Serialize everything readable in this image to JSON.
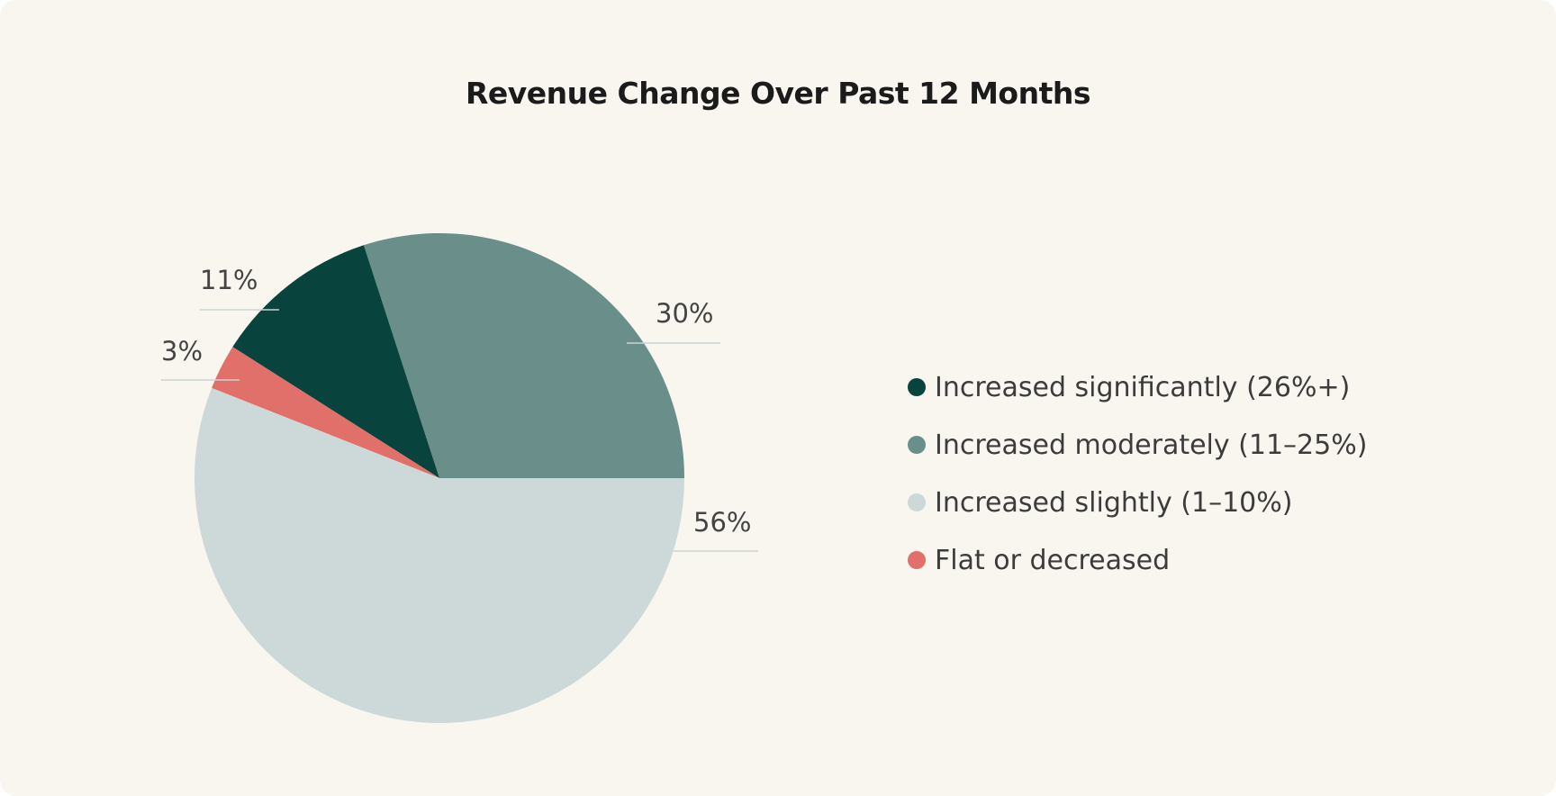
{
  "chart_data": {
    "type": "pie",
    "title": "Revenue Change Over Past 12 Months",
    "slices": [
      {
        "label": "Increased significantly (26%+)",
        "value": 11,
        "display": "11%",
        "color": "#08433d"
      },
      {
        "label": "Increased moderately (11–25%)",
        "value": 30,
        "display": "30%",
        "color": "#6a8f8a"
      },
      {
        "label": "Increased slightly (1–10%)",
        "value": 56,
        "display": "56%",
        "color": "#cdd9d8"
      },
      {
        "label": "Flat or decreased",
        "value": 3,
        "display": "3%",
        "color": "#e1706a"
      }
    ],
    "legend_position": "right"
  }
}
